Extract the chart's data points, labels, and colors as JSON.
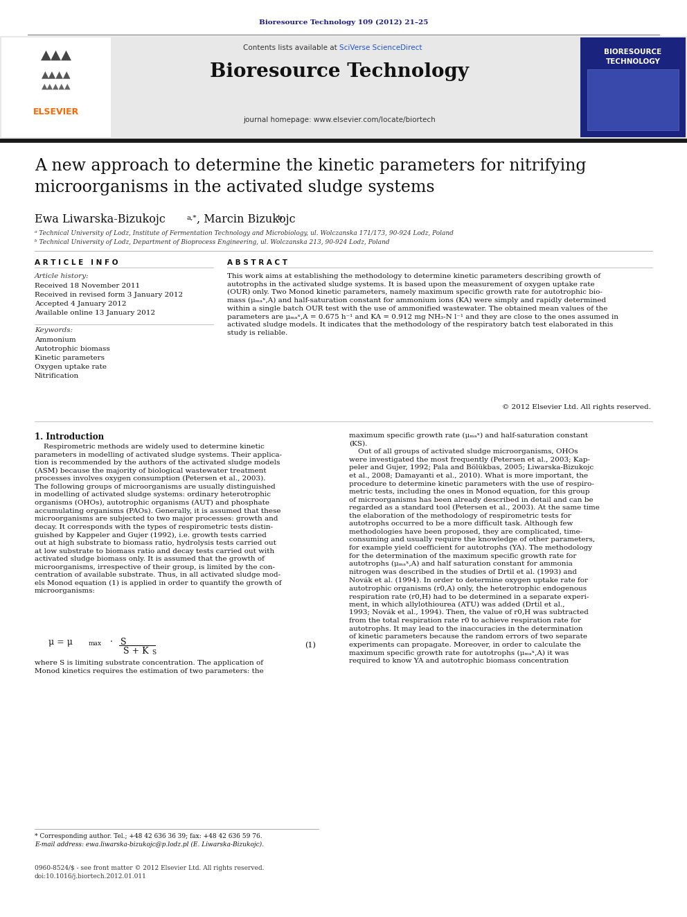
{
  "journal_ref": "Bioresource Technology 109 (2012) 21–25",
  "journal_ref_color": "#1a1a8c",
  "contents_text": "Contents lists available at ",
  "sciverse_text": "SciVerse ScienceDirect",
  "sciverse_color": "#2255cc",
  "journal_name": "Bioresource Technology",
  "journal_homepage": "journal homepage: www.elsevier.com/locate/biortech",
  "header_bg": "#e8e8e8",
  "article_title": "A new approach to determine the kinetic parameters for nitrifying\nmicroorganisms in the activated sludge systems",
  "affil_a": "ᵃ Technical University of Lodz, Institute of Fermentation Technology and Microbiology, ul. Wolczanska 171/173, 90-924 Lodz, Poland",
  "affil_b": "ᵇ Technical University of Lodz, Department of Bioprocess Engineering, ul. Wolczanska 213, 90-924 Lodz, Poland",
  "article_info_header": "A R T I C L E   I N F O",
  "abstract_header": "A B S T R A C T",
  "article_history_label": "Article history:",
  "received": "Received 18 November 2011",
  "revised": "Received in revised form 3 January 2012",
  "accepted": "Accepted 4 January 2012",
  "available": "Available online 13 January 2012",
  "keywords_label": "Keywords:",
  "keywords": [
    "Ammonium",
    "Autotrophic biomass",
    "Kinetic parameters",
    "Oxygen uptake rate",
    "Nitrification"
  ],
  "abstract_text": "This work aims at establishing the methodology to determine kinetic parameters describing growth of\nautotrophs in the activated sludge systems. It is based upon the measurement of oxygen uptake rate\n(OUR) only. Two Monod kinetic parameters, namely maximum specific growth rate for autotrophic bio-\nmass (μₘₐˣ,A) and half-saturation constant for ammonium ions (KA) were simply and rapidly determined\nwithin a single batch OUR test with the use of ammonified wastewater. The obtained mean values of the\nparameters are μₘₐˣ,A = 0.675 h⁻¹ and KA = 0.912 mg NH₃-N l⁻¹ and they are close to the ones assumed in\nactivated sludge models. It indicates that the methodology of the respiratory batch test elaborated in this\nstudy is reliable.",
  "copyright": "© 2012 Elsevier Ltd. All rights reserved.",
  "intro_header": "1. Introduction",
  "intro_left": "    Respirometric methods are widely used to determine kinetic\nparameters in modelling of activated sludge systems. Their applica-\ntion is recommended by the authors of the activated sludge models\n(ASM) because the majority of biological wastewater treatment\nprocesses involves oxygen consumption (Petersen et al., 2003).\nThe following groups of microorganisms are usually distinguished\nin modelling of activated sludge systems: ordinary heterotrophic\norganisms (OHOs), autotrophic organisms (AUT) and phosphate\naccumulating organisms (PAOs). Generally, it is assumed that these\nmicroorganisms are subjected to two major processes: growth and\ndecay. It corresponds with the types of respirometric tests distin-\nguished by Kappeler and Gujer (1992), i.e. growth tests carried\nout at high substrate to biomass ratio, hydrolysis tests carried out\nat low substrate to biomass ratio and decay tests carried out with\nactivated sludge biomass only. It is assumed that the growth of\nmicroorganisms, irrespective of their group, is limited by the con-\ncentration of available substrate. Thus, in all activated sludge mod-\nels Monod equation (1) is applied in order to quantify the growth of\nmicroorganisms:",
  "where_text": "where S is limiting substrate concentration. The application of\nMonod kinetics requires the estimation of two parameters: the",
  "right_col_text": "maximum specific growth rate (μₘₐˣ) and half-saturation constant\n(KS).\n    Out of all groups of activated sludge microorganisms, OHOs\nwere investigated the most frequently (Petersen et al., 2003; Kap-\npeler and Gujer, 1992; Pala and Bölükbas, 2005; Liwarska-Bizukojc\net al., 2008; Damayanti et al., 2010). What is more important, the\nprocedure to determine kinetic parameters with the use of respiro-\nmetric tests, including the ones in Monod equation, for this group\nof microorganisms has been already described in detail and can be\nregarded as a standard tool (Petersen et al., 2003). At the same time\nthe elaboration of the methodology of respirometric tests for\nautotrophs occurred to be a more difficult task. Although few\nmethodologies have been proposed, they are complicated, time-\nconsuming and usually require the knowledge of other parameters,\nfor example yield coefficient for autotrophs (YA). The methodology\nfor the determination of the maximum specific growth rate for\nautotrophs (μₘₐˣ,A) and half saturation constant for ammonia\nnitrogen was described in the studies of Drtil et al. (1993) and\nNovák et al. (1994). In order to determine oxygen uptake rate for\nautotrophic organisms (r0,A) only, the heterotrophic endogenous\nrespiration rate (r0,H) had to be determined in a separate experi-\nment, in which allylothiourea (ATU) was added (Drtil et al.,\n1993; Novák et al., 1994). Then, the value of r0,H was subtracted\nfrom the total respiration rate r0 to achieve respiration rate for\nautotrophs. It may lead to the inaccuracies in the determination\nof kinetic parameters because the random errors of two separate\nexperiments can propagate. Moreover, in order to calculate the\nmaximum specific growth rate for autotrophs (μₘₐˣ,A) it was\nrequired to know YA and autotrophic biomass concentration",
  "footnote_star": "* Corresponding author. Tel.; +48 42 636 36 39; fax: +48 42 636 59 76.",
  "footnote_email": "E-mail address: ewa.liwarska-bizukojc@p.lodz.pl (E. Liwarska-Bizukojc).",
  "footer_issn": "0960-8524/$ - see front matter © 2012 Elsevier Ltd. All rights reserved.",
  "footer_doi": "doi:10.1016/j.biortech.2012.01.011",
  "link_color": "#2255cc",
  "bg_color": "#ffffff",
  "text_color": "#000000"
}
